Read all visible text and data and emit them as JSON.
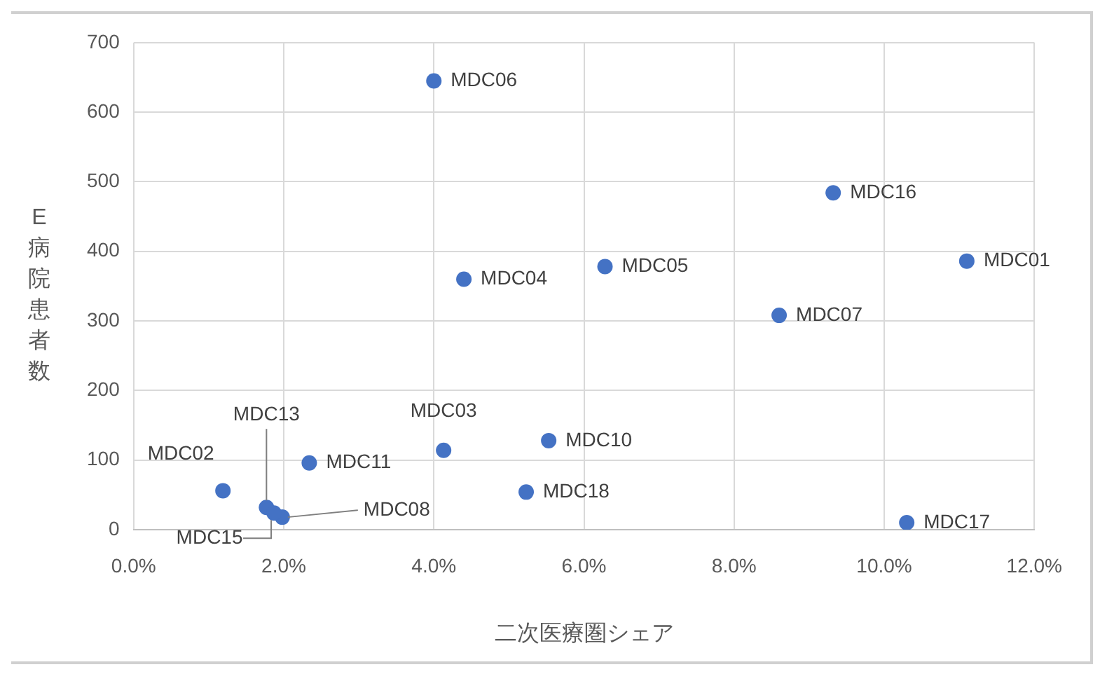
{
  "chart_data": {
    "type": "scatter",
    "xlabel": "二次医療圏シェア",
    "ylabel": "E病院患者数",
    "x": [
      11.1,
      1.19,
      4.13,
      4.4,
      6.28,
      4.0,
      8.6,
      1.98,
      5.53,
      2.34,
      1.77,
      1.87,
      9.32,
      10.3,
      5.23
    ],
    "series": [
      {
        "color": "#4472c4",
        "values": [
          386,
          56,
          114,
          360,
          378,
          645,
          308,
          18,
          128,
          96,
          32,
          24,
          484,
          10,
          54
        ]
      }
    ],
    "annotations": [
      {
        "text": "MDC01",
        "x": 11.1,
        "y": 386
      },
      {
        "text": "MDC02",
        "x": 1.19,
        "y": 56
      },
      {
        "text": "MDC03",
        "x": 4.13,
        "y": 114
      },
      {
        "text": "MDC04",
        "x": 4.4,
        "y": 360
      },
      {
        "text": "MDC05",
        "x": 6.28,
        "y": 378
      },
      {
        "text": "MDC06",
        "x": 4.0,
        "y": 645
      },
      {
        "text": "MDC07",
        "x": 8.6,
        "y": 308
      },
      {
        "text": "MDC08",
        "x": 1.98,
        "y": 18
      },
      {
        "text": "MDC10",
        "x": 5.53,
        "y": 128
      },
      {
        "text": "MDC11",
        "x": 2.34,
        "y": 96
      },
      {
        "text": "MDC13",
        "x": 1.77,
        "y": 32
      },
      {
        "text": "MDC15",
        "x": 1.87,
        "y": 24
      },
      {
        "text": "MDC16",
        "x": 9.32,
        "y": 484
      },
      {
        "text": "MDC17",
        "x": 10.3,
        "y": 10
      },
      {
        "text": "MDC18",
        "x": 5.23,
        "y": 54
      }
    ],
    "xlim": [
      0,
      12
    ],
    "xticks": [
      {
        "value": 0,
        "label": "0.0%"
      },
      {
        "value": 2,
        "label": "2.0%"
      },
      {
        "value": 4,
        "label": "4.0%"
      },
      {
        "value": 6,
        "label": "6.0%"
      },
      {
        "value": 8,
        "label": "8.0%"
      },
      {
        "value": 10,
        "label": "10.0%"
      },
      {
        "value": 12,
        "label": "12.0%"
      }
    ],
    "ylim": [
      0,
      700
    ],
    "yticks": [
      0,
      100,
      200,
      300,
      400,
      500,
      600,
      700
    ],
    "grid": true,
    "legend": false,
    "marker": "circle"
  }
}
